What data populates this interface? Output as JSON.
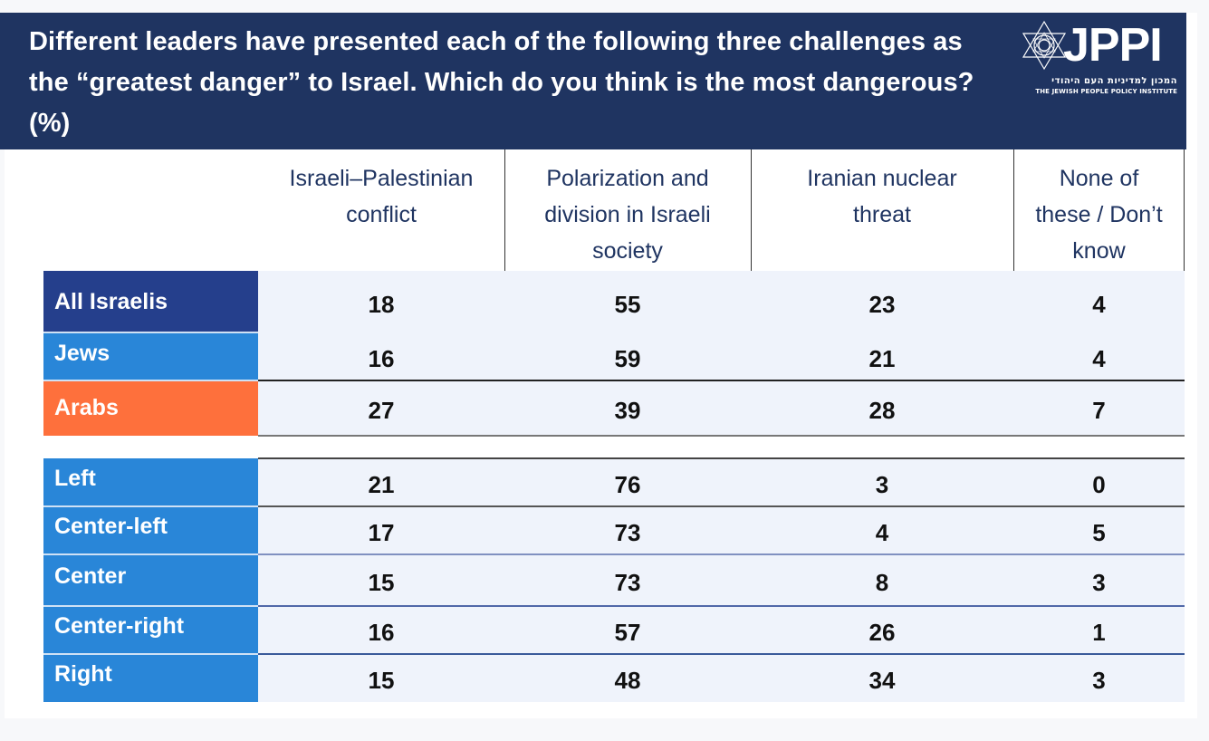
{
  "title": "Different leaders have presented each of the following three challenges as the “greatest danger” to Israel. Which do you think is the most dangerous? (%)",
  "logo": {
    "name": "JPPI",
    "hebrew": "המכון למדיניות העם היהודי",
    "english": "THE JEWISH PEOPLE POLICY INSTITUTE",
    "icon": "star-of-david-icon"
  },
  "colors": {
    "header_band": "#1f3461",
    "all_israelis": "#253f8c",
    "jews": "#2986d8",
    "arabs": "#fe703c",
    "political": "#2986d8",
    "cell_bg": "#eff3fb"
  },
  "chart_data": {
    "type": "table",
    "title": "Different leaders have presented each of the following three challenges as the “greatest danger” to Israel. Which do you think is the most dangerous? (%)",
    "columns": [
      "Israeli–Palestinian conflict",
      "Polarization and division in Israeli society",
      "Iranian nuclear threat",
      "None of these / Don’t know"
    ],
    "column_lines": [
      [
        "Israeli–Palestinian",
        "conflict"
      ],
      [
        "Polarization and",
        "division in Israeli",
        "society"
      ],
      [
        "Iranian nuclear",
        "threat"
      ],
      [
        "None of",
        "these / Don’t",
        "know"
      ]
    ],
    "rows": [
      {
        "label": "All Israelis",
        "group": "all_israelis",
        "values": [
          18,
          55,
          23,
          4
        ]
      },
      {
        "label": "Jews",
        "group": "jews",
        "values": [
          16,
          59,
          21,
          4
        ]
      },
      {
        "label": "Arabs",
        "group": "arabs",
        "values": [
          27,
          39,
          28,
          7
        ]
      },
      {
        "label": "Left",
        "group": "political",
        "values": [
          21,
          76,
          3,
          0
        ]
      },
      {
        "label": "Center-left",
        "group": "political",
        "values": [
          17,
          73,
          4,
          5
        ]
      },
      {
        "label": "Center",
        "group": "political",
        "values": [
          15,
          73,
          8,
          3
        ]
      },
      {
        "label": "Center-right",
        "group": "political",
        "values": [
          16,
          57,
          26,
          1
        ]
      },
      {
        "label": "Right",
        "group": "political",
        "values": [
          15,
          48,
          34,
          3
        ]
      }
    ],
    "unit": "%"
  }
}
